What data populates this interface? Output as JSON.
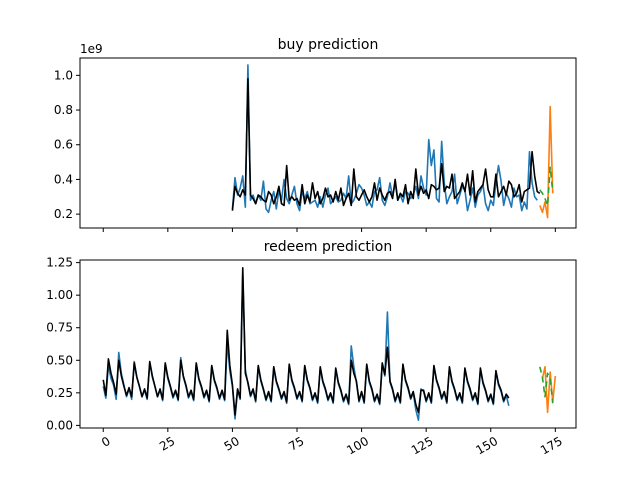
{
  "figure": {
    "background": "#ffffff"
  },
  "chart_data": [
    {
      "type": "line",
      "title": "buy prediction",
      "xlabel": "",
      "ylabel": "",
      "offset_text": "1e9",
      "scale": 1000000000,
      "xlim": [
        -9,
        183
      ],
      "ylim": [
        0.12,
        1.1
      ],
      "yticks": [
        0.2,
        0.4,
        0.6,
        0.8,
        1.0
      ],
      "ytick_labels": [
        "0.2",
        "0.4",
        "0.6",
        "0.8",
        "1.0"
      ],
      "xticks": [
        0,
        25,
        50,
        75,
        100,
        125,
        150,
        175
      ],
      "show_xtick_labels": false,
      "grid": false,
      "legend": "none",
      "series": [
        {
          "color": "#1f77b4",
          "dash": "",
          "x_start": 50,
          "values": [
            0.23,
            0.41,
            0.31,
            0.35,
            0.42,
            0.24,
            1.06,
            0.28,
            0.31,
            0.26,
            0.31,
            0.28,
            0.39,
            0.23,
            0.21,
            0.28,
            0.33,
            0.23,
            0.34,
            0.28,
            0.4,
            0.29,
            0.26,
            0.31,
            0.36,
            0.26,
            0.22,
            0.33,
            0.29,
            0.33,
            0.26,
            0.27,
            0.28,
            0.24,
            0.3,
            0.24,
            0.31,
            0.35,
            0.26,
            0.28,
            0.3,
            0.27,
            0.28,
            0.32,
            0.29,
            0.42,
            0.26,
            0.28,
            0.32,
            0.37,
            0.35,
            0.31,
            0.25,
            0.27,
            0.24,
            0.33,
            0.34,
            0.41,
            0.28,
            0.25,
            0.3,
            0.38,
            0.3,
            0.38,
            0.28,
            0.31,
            0.27,
            0.33,
            0.32,
            0.29,
            0.31,
            0.36,
            0.29,
            0.42,
            0.35,
            0.31,
            0.63,
            0.48,
            0.57,
            0.29,
            0.27,
            0.62,
            0.38,
            0.26,
            0.3,
            0.33,
            0.43,
            0.26,
            0.31,
            0.36,
            0.34,
            0.22,
            0.28,
            0.35,
            0.24,
            0.31,
            0.33,
            0.37,
            0.26,
            0.22,
            0.28,
            0.25,
            0.38,
            0.48,
            0.39,
            0.25,
            0.32,
            0.29,
            0.24,
            0.35,
            0.3,
            0.31,
            0.22,
            0.27,
            0.23,
            0.56,
            0.38,
            0.3,
            0.28
          ]
        },
        {
          "color": "#000000",
          "dash": "",
          "x_start": 50,
          "values": [
            0.22,
            0.36,
            0.32,
            0.3,
            0.34,
            0.31,
            0.98,
            0.31,
            0.29,
            0.26,
            0.31,
            0.3,
            0.28,
            0.27,
            0.33,
            0.31,
            0.26,
            0.3,
            0.36,
            0.26,
            0.25,
            0.48,
            0.28,
            0.3,
            0.28,
            0.29,
            0.25,
            0.37,
            0.26,
            0.31,
            0.27,
            0.38,
            0.29,
            0.33,
            0.26,
            0.29,
            0.35,
            0.3,
            0.31,
            0.27,
            0.33,
            0.28,
            0.35,
            0.25,
            0.29,
            0.32,
            0.25,
            0.46,
            0.3,
            0.28,
            0.31,
            0.34,
            0.3,
            0.27,
            0.3,
            0.38,
            0.28,
            0.35,
            0.31,
            0.28,
            0.32,
            0.33,
            0.29,
            0.4,
            0.28,
            0.32,
            0.3,
            0.37,
            0.26,
            0.33,
            0.29,
            0.46,
            0.31,
            0.36,
            0.32,
            0.34,
            0.29,
            0.37,
            0.36,
            0.34,
            0.35,
            0.49,
            0.33,
            0.36,
            0.35,
            0.43,
            0.29,
            0.31,
            0.33,
            0.38,
            0.33,
            0.43,
            0.31,
            0.45,
            0.27,
            0.33,
            0.35,
            0.37,
            0.46,
            0.34,
            0.3,
            0.3,
            0.43,
            0.3,
            0.33,
            0.36,
            0.31,
            0.39,
            0.37,
            0.3,
            0.32,
            0.37,
            0.27,
            0.33,
            0.34,
            0.35,
            0.56,
            0.42,
            0.33,
            0.32
          ]
        },
        {
          "color": "#ff7f0e",
          "dash": "",
          "x_start": 169,
          "values": [
            0.25,
            0.21,
            0.27,
            0.18,
            0.82,
            0.32
          ]
        },
        {
          "color": "#2ca02c",
          "dash": "6,4",
          "x_start": 169,
          "values": [
            0.34,
            0.32,
            0.29,
            0.25,
            0.47,
            0.33
          ]
        }
      ]
    },
    {
      "type": "line",
      "title": "redeem prediction",
      "xlabel": "",
      "ylabel": "",
      "offset_text": "1e9",
      "scale": 1000000000,
      "xlim": [
        -9,
        183
      ],
      "ylim": [
        -0.02,
        1.27
      ],
      "yticks": [
        0.0,
        0.25,
        0.5,
        0.75,
        1.0,
        1.25
      ],
      "ytick_labels": [
        "0.00",
        "0.25",
        "0.50",
        "0.75",
        "1.00",
        "1.25"
      ],
      "xticks": [
        0,
        25,
        50,
        75,
        100,
        125,
        150,
        175
      ],
      "xtick_labels": [
        "0",
        "25",
        "50",
        "75",
        "100",
        "125",
        "150",
        "175"
      ],
      "show_xtick_labels": true,
      "xtick_rotation": 30,
      "grid": false,
      "legend": "none",
      "series": [
        {
          "color": "#1f77b4",
          "dash": "",
          "x_start": 0,
          "values": [
            0.3,
            0.21,
            0.46,
            0.36,
            0.31,
            0.2,
            0.56,
            0.4,
            0.31,
            0.22,
            0.28,
            0.2,
            0.49,
            0.37,
            0.3,
            0.22,
            0.27,
            0.2,
            0.48,
            0.37,
            0.3,
            0.22,
            0.27,
            0.19,
            0.47,
            0.36,
            0.29,
            0.21,
            0.26,
            0.19,
            0.52,
            0.37,
            0.3,
            0.21,
            0.26,
            0.19,
            0.47,
            0.35,
            0.29,
            0.21,
            0.26,
            0.18,
            0.45,
            0.34,
            0.28,
            0.2,
            0.26,
            0.19,
            0.64,
            0.42,
            0.3,
            0.05,
            0.27,
            0.2,
            1.16,
            0.43,
            0.32,
            0.22,
            0.27,
            0.18,
            0.45,
            0.34,
            0.27,
            0.19,
            0.25,
            0.18,
            0.44,
            0.33,
            0.27,
            0.2,
            0.25,
            0.17,
            0.46,
            0.34,
            0.28,
            0.2,
            0.25,
            0.18,
            0.45,
            0.34,
            0.28,
            0.19,
            0.24,
            0.17,
            0.44,
            0.33,
            0.27,
            0.19,
            0.24,
            0.17,
            0.43,
            0.32,
            0.26,
            0.18,
            0.23,
            0.16,
            0.61,
            0.45,
            0.33,
            0.18,
            0.25,
            0.17,
            0.46,
            0.33,
            0.27,
            0.18,
            0.23,
            0.16,
            0.47,
            0.38,
            0.87,
            0.33,
            0.27,
            0.18,
            0.24,
            0.17,
            0.46,
            0.34,
            0.28,
            0.2,
            0.25,
            0.12,
            0.04,
            0.28,
            0.26,
            0.18,
            0.24,
            0.17,
            0.45,
            0.34,
            0.28,
            0.2,
            0.25,
            0.17,
            0.44,
            0.33,
            0.27,
            0.19,
            0.24,
            0.17,
            0.43,
            0.33,
            0.27,
            0.19,
            0.24,
            0.16,
            0.43,
            0.32,
            0.26,
            0.18,
            0.23,
            0.16,
            0.41,
            0.31,
            0.26,
            0.18,
            0.23,
            0.15
          ]
        },
        {
          "color": "#000000",
          "dash": "",
          "x_start": 0,
          "values": [
            0.35,
            0.23,
            0.51,
            0.4,
            0.33,
            0.24,
            0.5,
            0.38,
            0.3,
            0.23,
            0.29,
            0.22,
            0.48,
            0.37,
            0.3,
            0.22,
            0.28,
            0.21,
            0.49,
            0.38,
            0.3,
            0.22,
            0.28,
            0.2,
            0.48,
            0.37,
            0.3,
            0.22,
            0.27,
            0.2,
            0.5,
            0.38,
            0.31,
            0.22,
            0.27,
            0.2,
            0.48,
            0.36,
            0.3,
            0.22,
            0.27,
            0.19,
            0.46,
            0.35,
            0.29,
            0.21,
            0.27,
            0.2,
            0.73,
            0.46,
            0.31,
            0.08,
            0.28,
            0.21,
            1.21,
            0.4,
            0.33,
            0.23,
            0.28,
            0.19,
            0.46,
            0.35,
            0.28,
            0.2,
            0.26,
            0.19,
            0.45,
            0.34,
            0.28,
            0.21,
            0.26,
            0.18,
            0.47,
            0.35,
            0.29,
            0.21,
            0.26,
            0.19,
            0.46,
            0.35,
            0.29,
            0.2,
            0.25,
            0.18,
            0.45,
            0.34,
            0.28,
            0.2,
            0.25,
            0.18,
            0.44,
            0.33,
            0.27,
            0.19,
            0.24,
            0.17,
            0.5,
            0.4,
            0.34,
            0.19,
            0.26,
            0.18,
            0.47,
            0.34,
            0.28,
            0.19,
            0.24,
            0.17,
            0.48,
            0.39,
            0.6,
            0.34,
            0.28,
            0.19,
            0.25,
            0.18,
            0.47,
            0.35,
            0.29,
            0.21,
            0.26,
            0.16,
            0.1,
            0.27,
            0.27,
            0.19,
            0.25,
            0.18,
            0.46,
            0.35,
            0.29,
            0.21,
            0.26,
            0.18,
            0.45,
            0.34,
            0.28,
            0.2,
            0.25,
            0.18,
            0.44,
            0.34,
            0.28,
            0.2,
            0.25,
            0.17,
            0.44,
            0.33,
            0.27,
            0.19,
            0.24,
            0.17,
            0.42,
            0.32,
            0.27,
            0.19,
            0.24,
            0.21
          ]
        },
        {
          "color": "#ff7f0e",
          "dash": "",
          "x_start": 170,
          "values": [
            0.36,
            0.45,
            0.1,
            0.41,
            0.18,
            0.38
          ]
        },
        {
          "color": "#2ca02c",
          "dash": "6,4",
          "x_start": 169,
          "values": [
            0.45,
            0.37,
            0.22,
            0.4,
            0.36,
            0.17
          ]
        }
      ]
    }
  ]
}
